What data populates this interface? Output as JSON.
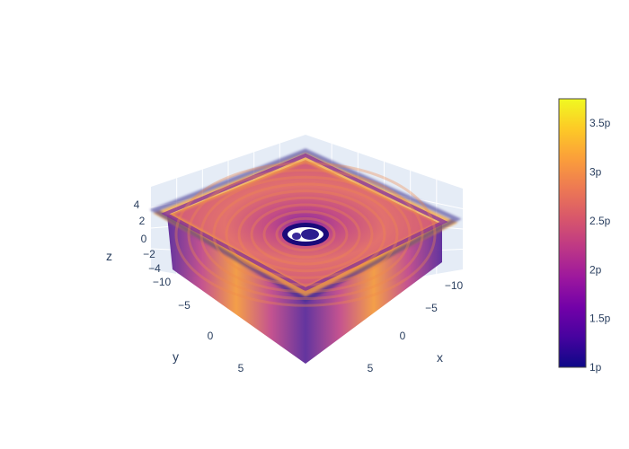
{
  "chart_data": {
    "type": "volume",
    "title": "",
    "axes": {
      "x": {
        "title": "x",
        "range": [
          -12,
          12
        ],
        "ticks": [
          {
            "value": -10,
            "label": "−10"
          },
          {
            "value": -5,
            "label": "−5"
          },
          {
            "value": 0,
            "label": "0"
          },
          {
            "value": 5,
            "label": "5"
          }
        ]
      },
      "y": {
        "title": "y",
        "range": [
          -12,
          12
        ],
        "ticks": [
          {
            "value": -10,
            "label": "−10"
          },
          {
            "value": -5,
            "label": "−5"
          },
          {
            "value": 0,
            "label": "0"
          },
          {
            "value": 5,
            "label": "5"
          }
        ]
      },
      "z": {
        "title": "z",
        "range": [
          -5,
          5
        ],
        "ticks": [
          {
            "value": -4,
            "label": "−4"
          },
          {
            "value": -2,
            "label": "−2"
          },
          {
            "value": 0,
            "label": "0"
          },
          {
            "value": 2,
            "label": "2"
          },
          {
            "value": 4,
            "label": "4"
          }
        ]
      }
    },
    "grid": true,
    "colorscale": "plasma",
    "colors": [
      "#0d0887",
      "#46039f",
      "#7201a8",
      "#9c179e",
      "#bd3786",
      "#d8576b",
      "#ed7953",
      "#fb9f3a",
      "#fdca26",
      "#f0f921"
    ],
    "colorbar": {
      "range": [
        1,
        3.75
      ],
      "ticks": [
        {
          "value": 1,
          "label": "1p"
        },
        {
          "value": 1.5,
          "label": "1.5p"
        },
        {
          "value": 2,
          "label": "2p"
        },
        {
          "value": 2.5,
          "label": "2.5p"
        },
        {
          "value": 3,
          "label": "3p"
        },
        {
          "value": 3.5,
          "label": "3.5p"
        }
      ]
    }
  }
}
